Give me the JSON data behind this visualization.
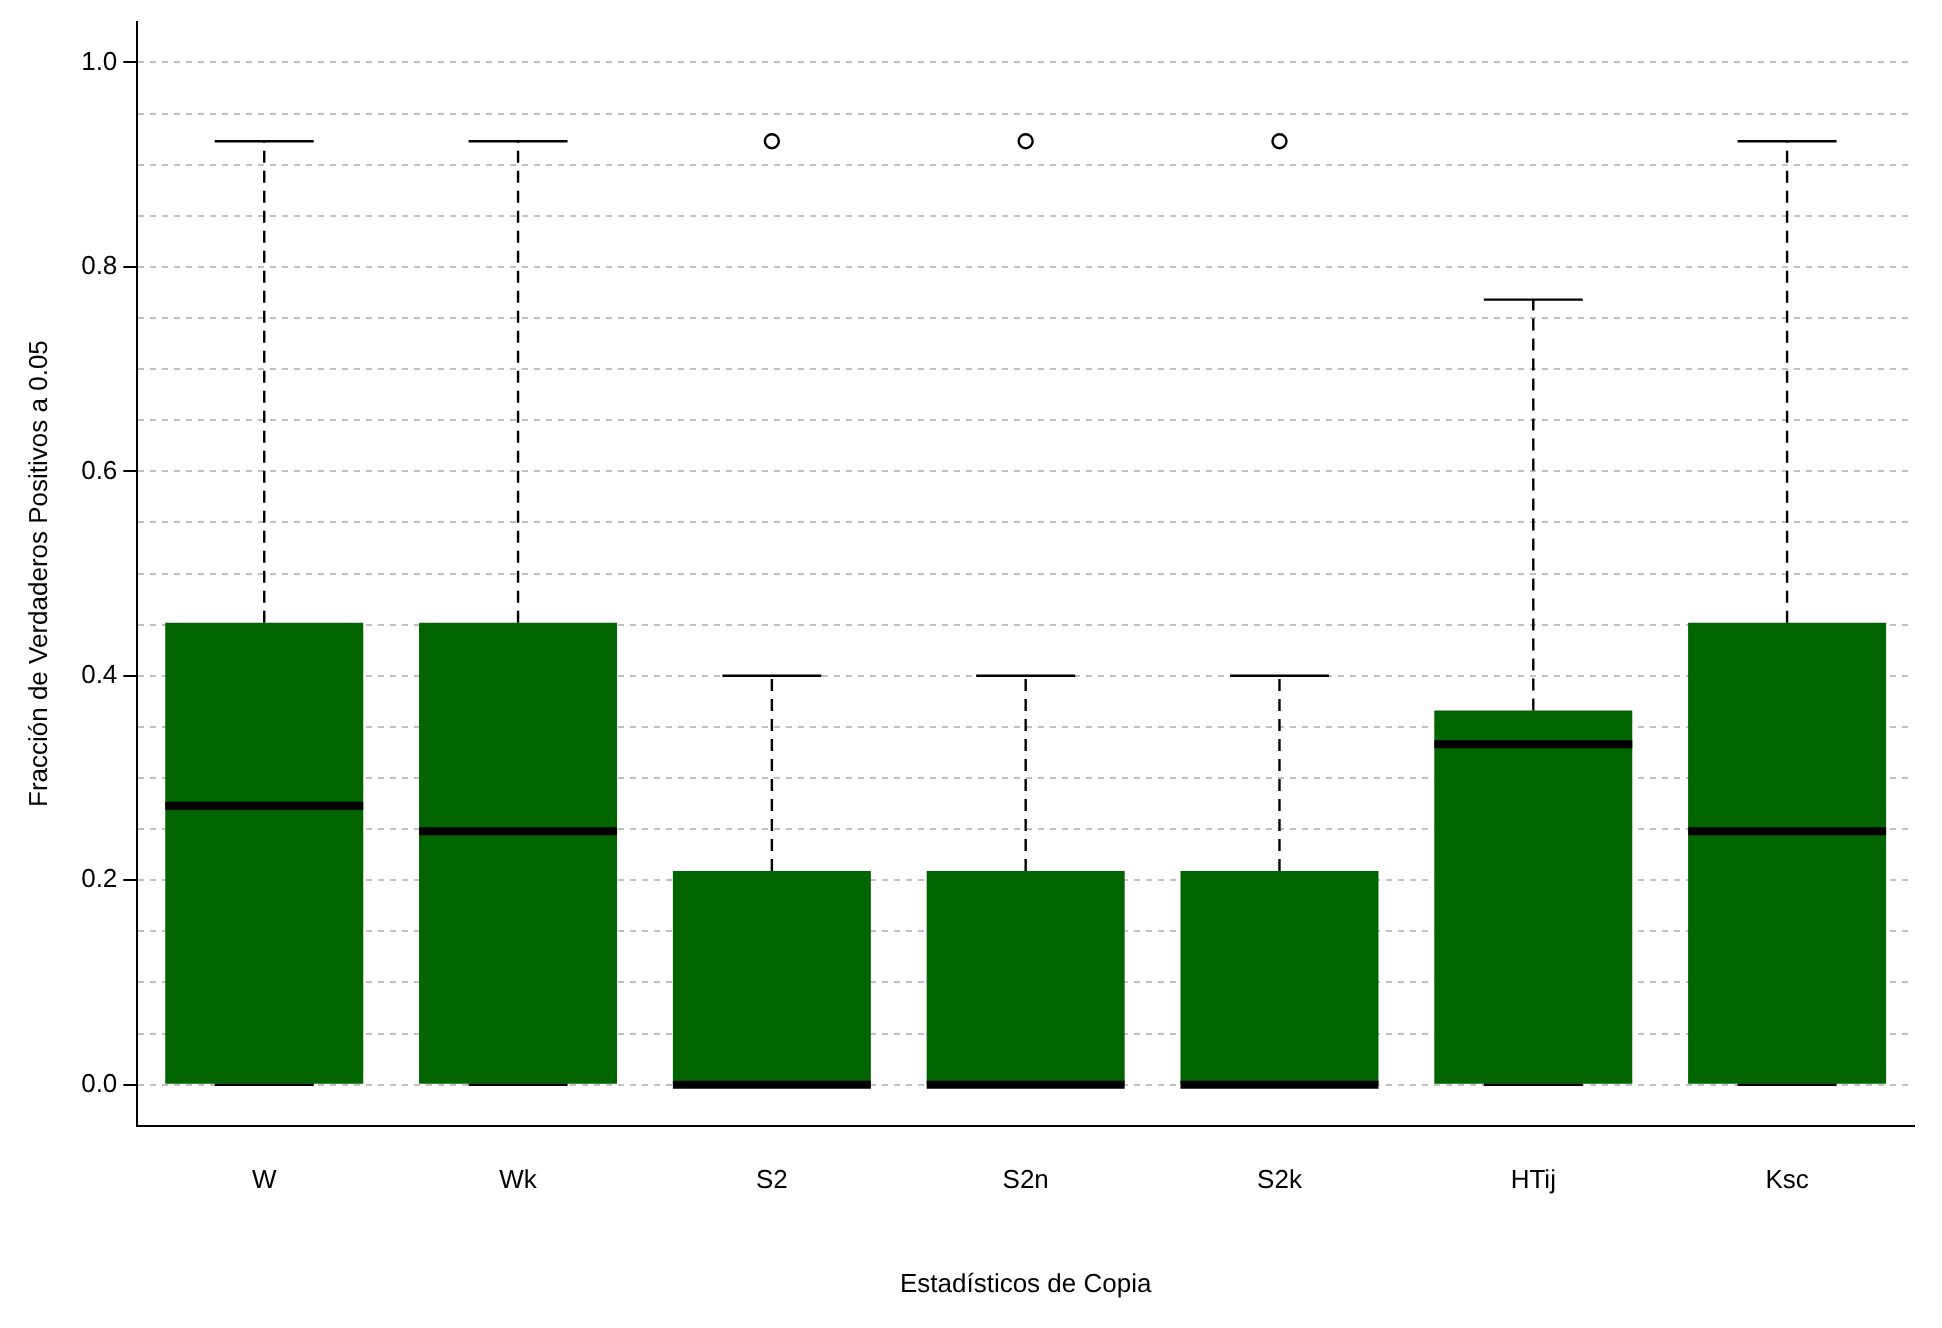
{
  "chart_data": {
    "type": "box",
    "xlabel": "Estadísticos de Copia",
    "ylabel": "Fracción de Verdaderos Positivos a 0.05",
    "categories": [
      "W",
      "Wk",
      "S2",
      "S2n",
      "S2k",
      "HTij",
      "Ksc"
    ],
    "color": "#006400",
    "boxes": [
      {
        "low": 0,
        "q1": 0,
        "median": 0.273,
        "q3": 0.452,
        "high": 0.923
      },
      {
        "low": 0,
        "q1": 0,
        "median": 0.248,
        "q3": 0.452,
        "high": 0.923
      },
      {
        "low": 0,
        "q1": 0,
        "median": 0,
        "q3": 0.209,
        "high": 0.4,
        "outliers": [
          0.923
        ]
      },
      {
        "low": 0,
        "q1": 0,
        "median": 0,
        "q3": 0.209,
        "high": 0.4,
        "outliers": [
          0.923
        ]
      },
      {
        "low": 0,
        "q1": 0,
        "median": 0,
        "q3": 0.209,
        "high": 0.4,
        "outliers": [
          0.923
        ]
      },
      {
        "low": 0,
        "q1": 0,
        "median": 0.333,
        "q3": 0.366,
        "high": 0.768
      },
      {
        "low": 0,
        "q1": 0,
        "median": 0.248,
        "q3": 0.452,
        "high": 0.923
      }
    ],
    "ylim": [
      -0.04,
      1.04
    ],
    "yticks": [
      {
        "value": 0,
        "label": "0.0"
      },
      {
        "value": 0.05,
        "label": null
      },
      0.2,
      {
        "value": 0.1,
        "label": null
      },
      {
        "value": 0.15,
        "label": null
      },
      {
        "value": 0.25,
        "label": null
      },
      {
        "value": 0.3,
        "label": null
      },
      {
        "value": 0.35,
        "label": null
      },
      0.4,
      {
        "value": 0.45,
        "label": null
      },
      {
        "value": 0.5,
        "label": null
      },
      {
        "value": 0.55,
        "label": null
      },
      0.6,
      {
        "value": 0.65,
        "label": null
      },
      {
        "value": 0.7,
        "label": null
      },
      {
        "value": 0.75,
        "label": null
      },
      0.8,
      {
        "value": 0.85,
        "label": null
      },
      {
        "value": 0.9,
        "label": null
      },
      {
        "value": 0.95,
        "label": null
      },
      {
        "value": 1,
        "label": "1.0"
      }
    ],
    "grid": "y",
    "legend": false
  }
}
